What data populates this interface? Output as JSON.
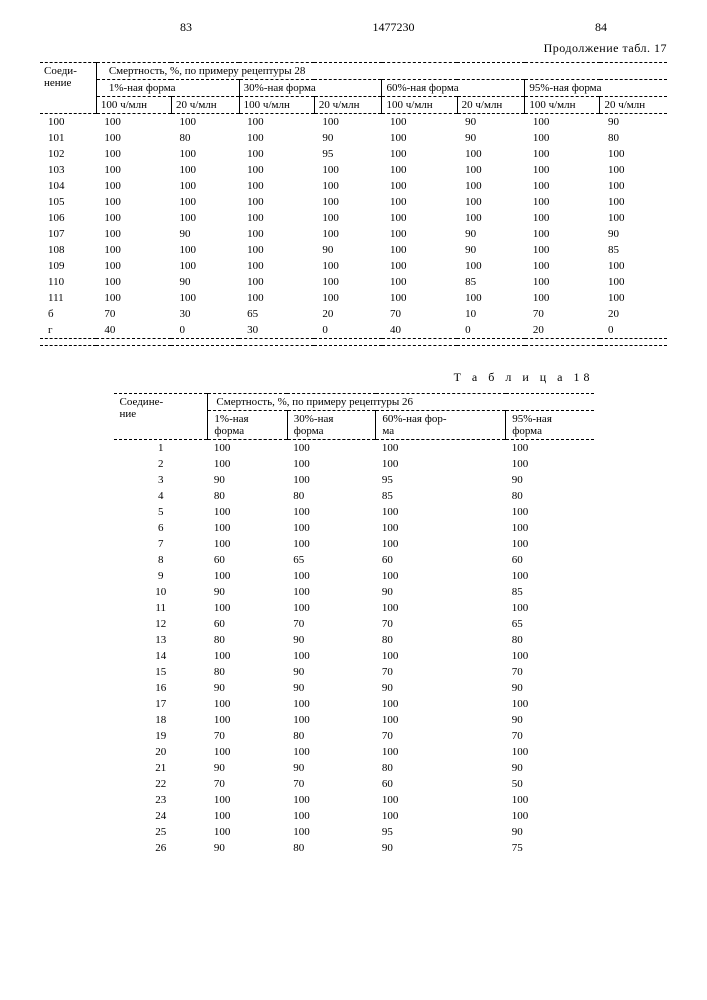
{
  "header": {
    "left_num": "83",
    "patent_num": "1477230",
    "right_num": "84",
    "continuation": "Продолжение табл. 17"
  },
  "table17": {
    "col_compound": "Соеди-\nнение",
    "title": "Смертность, %, по примеру рецептуры 28",
    "forms": [
      "1%-ная форма",
      "30%-ная форма",
      "60%-ная форма",
      "95%-ная форма"
    ],
    "subcols": [
      "100 ч/млн",
      "20 ч/млн"
    ],
    "rows": [
      [
        "100",
        "100",
        "100",
        "100",
        "100",
        "100",
        "90",
        "100",
        "90"
      ],
      [
        "101",
        "100",
        "80",
        "100",
        "90",
        "100",
        "90",
        "100",
        "80"
      ],
      [
        "102",
        "100",
        "100",
        "100",
        "95",
        "100",
        "100",
        "100",
        "100"
      ],
      [
        "103",
        "100",
        "100",
        "100",
        "100",
        "100",
        "100",
        "100",
        "100"
      ],
      [
        "104",
        "100",
        "100",
        "100",
        "100",
        "100",
        "100",
        "100",
        "100"
      ],
      [
        "105",
        "100",
        "100",
        "100",
        "100",
        "100",
        "100",
        "100",
        "100"
      ],
      [
        "106",
        "100",
        "100",
        "100",
        "100",
        "100",
        "100",
        "100",
        "100"
      ],
      [
        "107",
        "100",
        "90",
        "100",
        "100",
        "100",
        "90",
        "100",
        "90"
      ],
      [
        "108",
        "100",
        "100",
        "100",
        "90",
        "100",
        "90",
        "100",
        "85"
      ],
      [
        "109",
        "100",
        "100",
        "100",
        "100",
        "100",
        "100",
        "100",
        "100"
      ],
      [
        "110",
        "100",
        "90",
        "100",
        "100",
        "100",
        "85",
        "100",
        "100"
      ],
      [
        "111",
        "100",
        "100",
        "100",
        "100",
        "100",
        "100",
        "100",
        "100"
      ],
      [
        "б",
        "70",
        "30",
        "65",
        "20",
        "70",
        "10",
        "70",
        "20"
      ],
      [
        "г",
        "40",
        "0",
        "30",
        "0",
        "40",
        "0",
        "20",
        "0"
      ]
    ]
  },
  "table18": {
    "title_label": "Т а б л и ц а  18",
    "col_compound": "Соедине-\nние",
    "title": "Смертность, %, по примеру рецептуры 26",
    "forms": [
      "1%-ная\nформа",
      "30%-ная\nформа",
      "60%-ная фор-\nма",
      "95%-ная\nформа"
    ],
    "rows": [
      [
        "1",
        "100",
        "100",
        "100",
        "100"
      ],
      [
        "2",
        "100",
        "100",
        "100",
        "100"
      ],
      [
        "3",
        "90",
        "100",
        "95",
        "90"
      ],
      [
        "4",
        "80",
        "80",
        "85",
        "80"
      ],
      [
        "5",
        "100",
        "100",
        "100",
        "100"
      ],
      [
        "6",
        "100",
        "100",
        "100",
        "100"
      ],
      [
        "7",
        "100",
        "100",
        "100",
        "100"
      ],
      [
        "8",
        "60",
        "65",
        "60",
        "60"
      ],
      [
        "9",
        "100",
        "100",
        "100",
        "100"
      ],
      [
        "10",
        "90",
        "100",
        "90",
        "85"
      ],
      [
        "11",
        "100",
        "100",
        "100",
        "100"
      ],
      [
        "12",
        "60",
        "70",
        "70",
        "65"
      ],
      [
        "13",
        "80",
        "90",
        "80",
        "80"
      ],
      [
        "14",
        "100",
        "100",
        "100",
        "100"
      ],
      [
        "15",
        "80",
        "90",
        "70",
        "70"
      ],
      [
        "16",
        "90",
        "90",
        "90",
        "90"
      ],
      [
        "17",
        "100",
        "100",
        "100",
        "100"
      ],
      [
        "18",
        "100",
        "100",
        "100",
        "90"
      ],
      [
        "19",
        "70",
        "80",
        "70",
        "70"
      ],
      [
        "20",
        "100",
        "100",
        "100",
        "100"
      ],
      [
        "21",
        "90",
        "90",
        "80",
        "90"
      ],
      [
        "22",
        "70",
        "70",
        "60",
        "50"
      ],
      [
        "23",
        "100",
        "100",
        "100",
        "100"
      ],
      [
        "24",
        "100",
        "100",
        "100",
        "100"
      ],
      [
        "25",
        "100",
        "100",
        "95",
        "90"
      ],
      [
        "26",
        "90",
        "80",
        "90",
        "75"
      ]
    ]
  }
}
